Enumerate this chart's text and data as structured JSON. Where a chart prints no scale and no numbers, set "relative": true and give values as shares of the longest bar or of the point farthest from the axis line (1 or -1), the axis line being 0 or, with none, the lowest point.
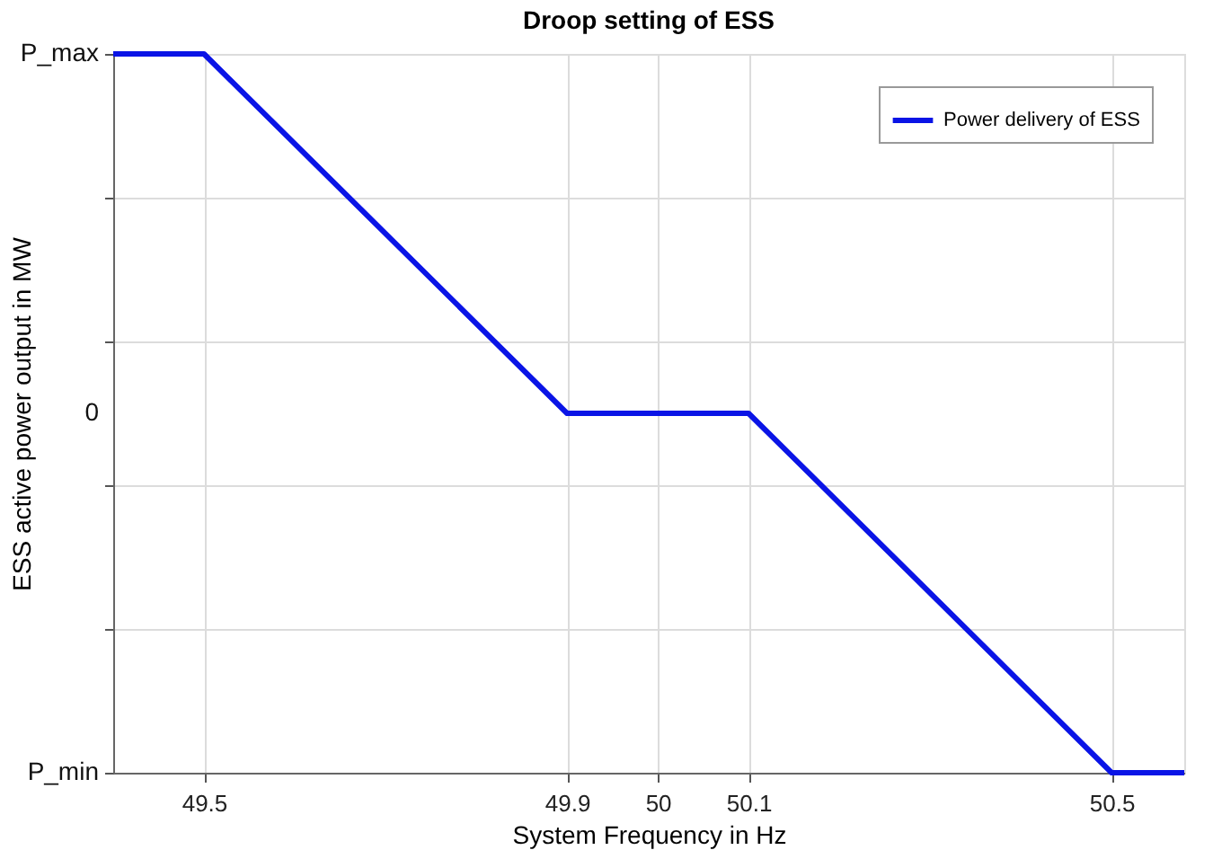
{
  "chart_data": {
    "type": "line",
    "title": "Droop setting of ESS",
    "xlabel": "System Frequency in Hz",
    "ylabel": "ESS active power output in MW",
    "x": [
      49.4,
      49.5,
      49.9,
      50.1,
      50.5,
      50.58
    ],
    "series": [
      {
        "name": "Power delivery of ESS",
        "color": "#0a14e6",
        "values": [
          1,
          1,
          0.5,
          0.5,
          0,
          0
        ]
      }
    ],
    "xlim": [
      49.4,
      50.58
    ],
    "xticks": [
      49.5,
      49.9,
      50,
      50.1,
      50.5
    ],
    "relative": true,
    "annotations": [
      "P_max",
      "0",
      "P_min"
    ],
    "grid": true,
    "legend": "top right",
    "marker": "none",
    "line_style": "solid"
  }
}
